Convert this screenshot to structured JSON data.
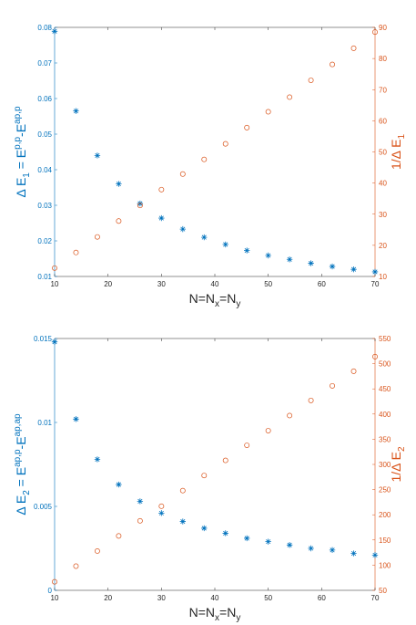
{
  "chart_data": [
    {
      "type": "scatter",
      "x_label": {
        "main": "N=N",
        "sub1": "x",
        "eq": "=N",
        "sub2": "y"
      },
      "y_left_label": {
        "pre": "Δ E",
        "sub": "1",
        "mid": " = E",
        "sup1": "p,p",
        "dash": "-E",
        "sup2": "ap,p"
      },
      "y_right_label": {
        "pre": "1/Δ E",
        "sub": "1"
      },
      "xlim": [
        10,
        70
      ],
      "ylim_left": [
        0.01,
        0.08
      ],
      "ylim_right": [
        10,
        90
      ],
      "x_ticks": [
        "10",
        "20",
        "30",
        "40",
        "50",
        "60",
        "70"
      ],
      "y_left_ticks": [
        "0.01",
        "0.02",
        "0.03",
        "0.04",
        "0.05",
        "0.06",
        "0.07",
        "0.08"
      ],
      "y_right_ticks": [
        "10",
        "20",
        "30",
        "40",
        "50",
        "60",
        "70",
        "80",
        "90"
      ],
      "series": [
        {
          "axis": "left",
          "marker": "star",
          "color": "#0072bd",
          "x": [
            10,
            14,
            18,
            22,
            26,
            30,
            34,
            38,
            42,
            46,
            50,
            54,
            58,
            62,
            66,
            70
          ],
          "y": [
            0.0789,
            0.0565,
            0.044,
            0.036,
            0.0305,
            0.0264,
            0.0233,
            0.021,
            0.019,
            0.0173,
            0.0159,
            0.0148,
            0.0137,
            0.0128,
            0.012,
            0.0113
          ]
        },
        {
          "axis": "right",
          "marker": "circle",
          "color": "#d95319",
          "x": [
            10,
            14,
            18,
            22,
            26,
            30,
            34,
            38,
            42,
            46,
            50,
            54,
            58,
            62,
            66,
            70
          ],
          "y": [
            12.7,
            17.7,
            22.7,
            27.8,
            32.8,
            37.9,
            42.9,
            47.6,
            52.6,
            57.8,
            62.9,
            67.6,
            73.0,
            78.1,
            83.3,
            88.5
          ]
        }
      ]
    },
    {
      "type": "scatter",
      "x_label": {
        "main": "N=N",
        "sub1": "x",
        "eq": "=N",
        "sub2": "y"
      },
      "y_left_label": {
        "pre": "Δ E",
        "sub": "2",
        "mid": " = E",
        "sup1": "ap,p",
        "dash": "-E",
        "sup2": "ap,ap"
      },
      "y_right_label": {
        "pre": "1/Δ E",
        "sub": "2"
      },
      "xlim": [
        10,
        70
      ],
      "ylim_left": [
        0,
        0.015
      ],
      "ylim_right": [
        50,
        550
      ],
      "x_ticks": [
        "10",
        "20",
        "30",
        "40",
        "50",
        "60",
        "70"
      ],
      "y_left_ticks": [
        "0",
        "0.005",
        "0.01",
        "0.015"
      ],
      "y_right_ticks": [
        "50",
        "100",
        "150",
        "200",
        "250",
        "300",
        "350",
        "400",
        "450",
        "500",
        "550"
      ],
      "series": [
        {
          "axis": "left",
          "marker": "star",
          "color": "#0072bd",
          "x": [
            10,
            14,
            18,
            22,
            26,
            30,
            34,
            38,
            42,
            46,
            50,
            54,
            58,
            62,
            66,
            70
          ],
          "y": [
            0.0148,
            0.0102,
            0.0078,
            0.0063,
            0.0053,
            0.0046,
            0.0041,
            0.0037,
            0.0034,
            0.0031,
            0.0029,
            0.0027,
            0.0025,
            0.0024,
            0.0022,
            0.0021
          ]
        },
        {
          "axis": "right",
          "marker": "circle",
          "color": "#d95319",
          "x": [
            10,
            14,
            18,
            22,
            26,
            30,
            34,
            38,
            42,
            46,
            50,
            54,
            58,
            62,
            66,
            70
          ],
          "y": [
            67,
            98,
            128,
            158,
            188,
            217,
            248,
            278,
            308,
            338,
            367,
            397,
            427,
            456,
            485,
            514
          ]
        }
      ]
    }
  ]
}
